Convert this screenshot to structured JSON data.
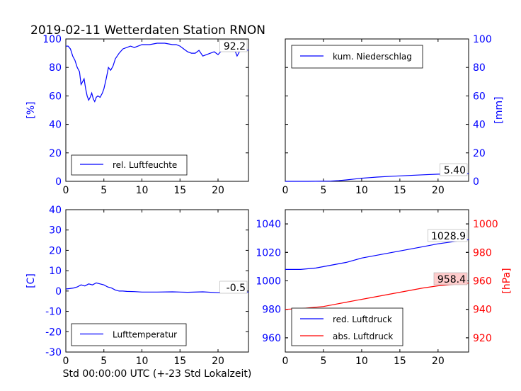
{
  "title": "2019-02-11 Wetterdaten Station RNON",
  "xlabel": "Std 00:00:00 UTC (+-23 Std Lokalzeit)",
  "colors": {
    "blue": "#0000ff",
    "red": "#ff0000",
    "label_bg": "#ffcccc"
  },
  "chart_data": [
    {
      "type": "line",
      "id": "humidity",
      "xlim": [
        0,
        24
      ],
      "ylim": [
        0,
        100
      ],
      "xticks": [
        0,
        5,
        10,
        15,
        20
      ],
      "yticks": [
        0,
        20,
        40,
        60,
        80,
        100
      ],
      "ylabel": "[%]",
      "legend_placement": "lower-left",
      "last_value_label": "92.2",
      "series": [
        {
          "name": "rel. Luftfeuchte",
          "color": "#0000ff",
          "x": [
            0,
            0.3,
            0.6,
            0.9,
            1.2,
            1.5,
            1.8,
            2.0,
            2.2,
            2.4,
            2.6,
            2.8,
            3.0,
            3.2,
            3.4,
            3.6,
            3.8,
            4.0,
            4.2,
            4.5,
            4.8,
            5.0,
            5.3,
            5.6,
            5.9,
            6.2,
            6.5,
            7.0,
            7.5,
            8.0,
            8.5,
            9.0,
            10.0,
            11.0,
            12.0,
            13.0,
            14.0,
            14.5,
            15.0,
            15.5,
            16.0,
            16.5,
            17.0,
            17.5,
            18.0,
            18.5,
            19.0,
            19.5,
            20.0,
            20.5,
            21.0,
            21.5,
            22.0,
            22.5,
            23.0,
            23.5,
            24.0
          ],
          "y": [
            95,
            95,
            93,
            88,
            85,
            80,
            77,
            68,
            70,
            72,
            65,
            60,
            57,
            59,
            62,
            58,
            56,
            59,
            60,
            59,
            62,
            65,
            72,
            80,
            78,
            81,
            86,
            90,
            93,
            94,
            95,
            94,
            96,
            96,
            97,
            97,
            96,
            96,
            95,
            93,
            91,
            90,
            90,
            92,
            88,
            89,
            90,
            91,
            89,
            92,
            95,
            97,
            95,
            88,
            93,
            92,
            92.2
          ]
        }
      ]
    },
    {
      "type": "line",
      "id": "precipitation",
      "xlim": [
        0,
        24
      ],
      "ylim": [
        0,
        100
      ],
      "xticks": [
        0,
        5,
        10,
        15,
        20
      ],
      "yticks": [
        0,
        20,
        40,
        60,
        80,
        100
      ],
      "ylabel": "[mm]",
      "legend_placement": "upper-left",
      "last_value_label": "5.40",
      "series": [
        {
          "name": "kum. Niederschlag",
          "color": "#0000ff",
          "x": [
            0,
            3,
            6,
            7,
            8,
            9,
            10,
            11,
            12,
            14,
            16,
            18,
            20,
            22,
            24
          ],
          "y": [
            0,
            0,
            0.2,
            0.5,
            1,
            1.6,
            2.2,
            2.6,
            3,
            3.6,
            4.1,
            4.6,
            5,
            5.2,
            5.4
          ]
        }
      ]
    },
    {
      "type": "line",
      "id": "temperature",
      "xlim": [
        0,
        24
      ],
      "ylim": [
        -30,
        40
      ],
      "xticks": [
        0,
        5,
        10,
        15,
        20
      ],
      "yticks": [
        -30,
        -20,
        -10,
        0,
        10,
        20,
        30,
        40
      ],
      "ylabel": "[C]",
      "legend_placement": "lower-left",
      "last_value_label": "-0.5",
      "series": [
        {
          "name": "Lufttemperatur",
          "color": "#0000ff",
          "x": [
            0,
            0.5,
            1,
            1.5,
            2,
            2.5,
            3,
            3.5,
            4,
            4.5,
            5,
            5.5,
            6,
            6.5,
            7,
            7.5,
            8,
            9,
            10,
            12,
            14,
            16,
            18,
            20,
            22,
            24
          ],
          "y": [
            1,
            1.2,
            1.5,
            2,
            3,
            2.5,
            3.5,
            3,
            4,
            3.5,
            3,
            2,
            1.5,
            0.5,
            0,
            0,
            -0.2,
            -0.3,
            -0.5,
            -0.5,
            -0.4,
            -0.6,
            -0.4,
            -0.8,
            -0.6,
            -0.5
          ]
        }
      ]
    },
    {
      "type": "line",
      "id": "pressure",
      "xlim": [
        0,
        24
      ],
      "ylim": [
        950,
        1050
      ],
      "ylim_right": [
        910,
        1010
      ],
      "xticks": [
        0,
        5,
        10,
        15,
        20
      ],
      "yticks": [
        960,
        980,
        1000,
        1020,
        1040
      ],
      "yticks_right": [
        920,
        940,
        960,
        980,
        1000
      ],
      "ylabel_right": "[hPa]",
      "legend_placement": "lower-left",
      "series": [
        {
          "name": "red. Luftdruck",
          "color": "#0000ff",
          "axis": "left",
          "last_value_label": "1028.9",
          "x": [
            0,
            2,
            4,
            5,
            6,
            8,
            10,
            12,
            14,
            16,
            18,
            20,
            22,
            24
          ],
          "y": [
            1008,
            1008,
            1009,
            1010,
            1011,
            1013,
            1016,
            1018,
            1020,
            1022,
            1024,
            1026,
            1027.5,
            1028.9
          ]
        },
        {
          "name": "abs. Luftdruck",
          "color": "#ff0000",
          "axis": "right",
          "last_value_label": "958.4",
          "x": [
            0,
            2,
            4,
            5,
            6,
            8,
            10,
            12,
            14,
            16,
            18,
            20,
            22,
            24
          ],
          "y": [
            940,
            940.5,
            941.5,
            942,
            943,
            945,
            947,
            949,
            951,
            953,
            955,
            956.5,
            957.5,
            958.4
          ]
        }
      ]
    }
  ]
}
